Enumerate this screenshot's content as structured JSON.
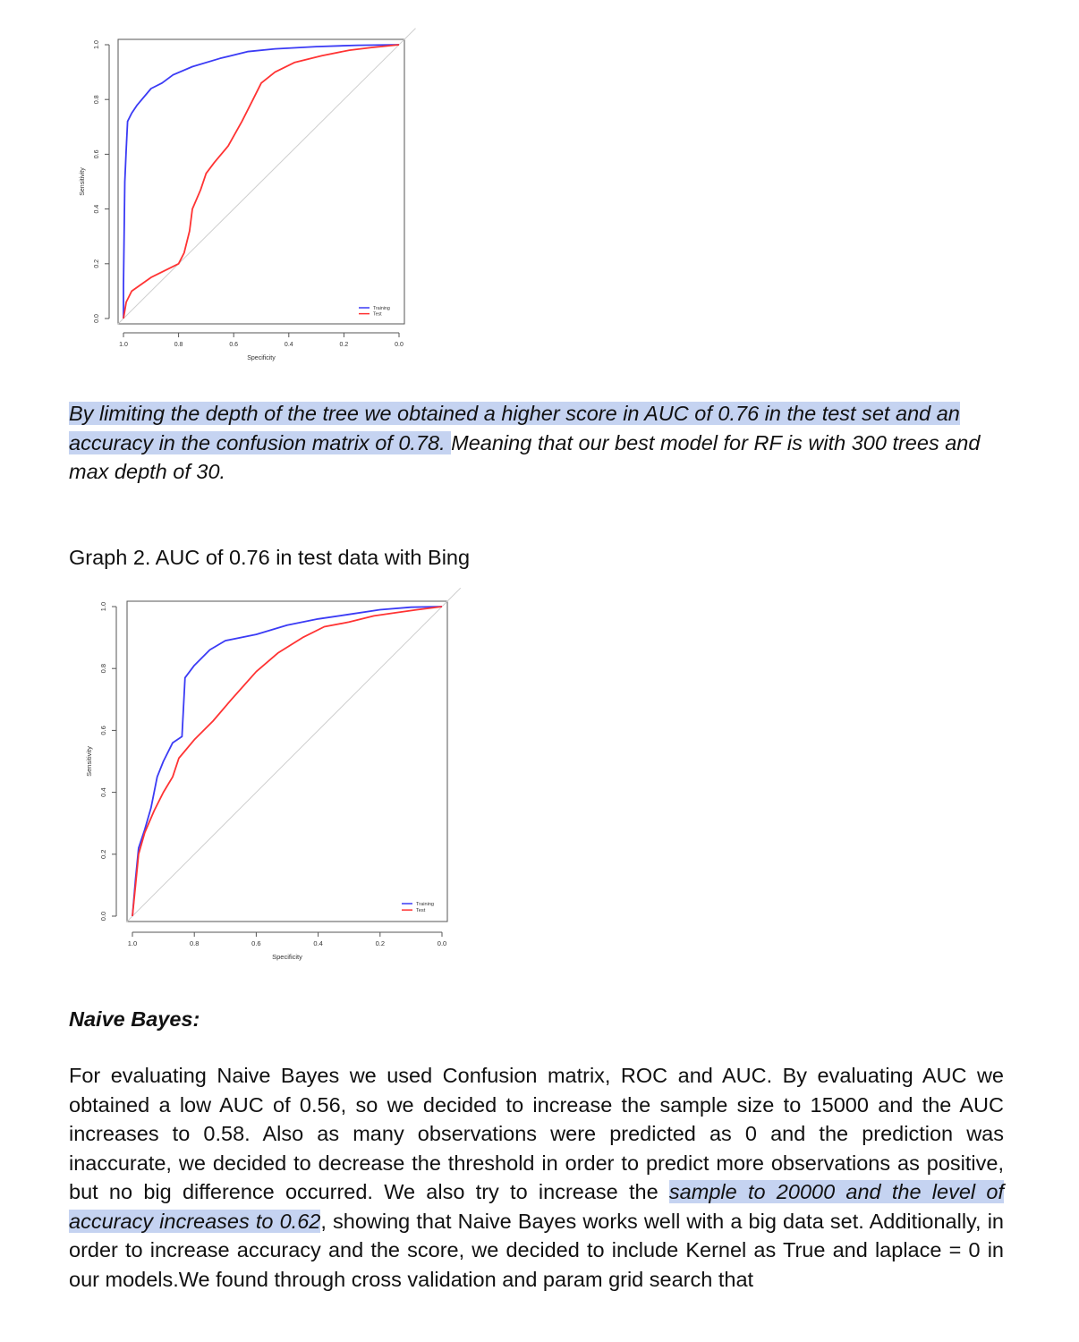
{
  "paragraph1": {
    "highlighted": "By limiting the depth of the tree we obtained a higher score in AUC of 0.76 in the test set and an accuracy in the confusion matrix of 0.78. ",
    "rest": "Meaning that our best model for RF is with 300 trees and max depth of 30."
  },
  "caption": "Graph 2. AUC of 0.76 in test data with Bing",
  "section_heading": "Naive Bayes:",
  "paragraph2": {
    "part1": "For evaluating  Naive Bayes we used Confusion matrix, ROC and AUC. By evaluating AUC we obtained a low AUC of 0.56, so we decided to increase the sample size to 15000 and the AUC increases to 0.58. Also as many observations were predicted as 0 and the prediction was inaccurate, we decided to decrease the threshold in order to predict more observations as positive, but no big difference occurred. We also try to increase the ",
    "highlight": "sample to 20000 and the level of accuracy increases to 0.62",
    "part2": ", showing that Naive Bayes works well with a big data set. Additionally, in order to increase accuracy and the score, we decided to include Kernel as True and laplace = 0 in our models.We found through cross validation and param grid search that"
  },
  "chart_data": [
    {
      "type": "line",
      "title": "",
      "xlabel": "Specificity",
      "ylabel": "Sensitivity",
      "xlim": [
        1.0,
        0.0
      ],
      "ylim": [
        0.0,
        1.0
      ],
      "x_ticks": [
        "1.0",
        "0.8",
        "0.6",
        "0.4",
        "0.2",
        "0.0"
      ],
      "y_ticks": [
        "0.0",
        "0.2",
        "0.4",
        "0.6",
        "0.8",
        "1.0"
      ],
      "legend_position": "bottom-right",
      "reference_line": true,
      "series": [
        {
          "name": "Training",
          "color": "#3b3bf5",
          "points": [
            [
              1.0,
              0.0
            ],
            [
              1.0,
              0.12
            ],
            [
              0.995,
              0.5
            ],
            [
              0.99,
              0.62
            ],
            [
              0.985,
              0.72
            ],
            [
              0.97,
              0.75
            ],
            [
              0.95,
              0.78
            ],
            [
              0.9,
              0.84
            ],
            [
              0.86,
              0.86
            ],
            [
              0.82,
              0.89
            ],
            [
              0.75,
              0.92
            ],
            [
              0.65,
              0.95
            ],
            [
              0.55,
              0.975
            ],
            [
              0.45,
              0.985
            ],
            [
              0.3,
              0.993
            ],
            [
              0.15,
              0.998
            ],
            [
              0.0,
              1.0
            ]
          ]
        },
        {
          "name": "Test",
          "color": "#ff3333",
          "points": [
            [
              1.0,
              0.0
            ],
            [
              0.99,
              0.06
            ],
            [
              0.97,
              0.1
            ],
            [
              0.9,
              0.15
            ],
            [
              0.8,
              0.2
            ],
            [
              0.78,
              0.24
            ],
            [
              0.76,
              0.32
            ],
            [
              0.75,
              0.4
            ],
            [
              0.72,
              0.47
            ],
            [
              0.7,
              0.53
            ],
            [
              0.67,
              0.57
            ],
            [
              0.62,
              0.63
            ],
            [
              0.57,
              0.72
            ],
            [
              0.53,
              0.8
            ],
            [
              0.5,
              0.86
            ],
            [
              0.45,
              0.9
            ],
            [
              0.38,
              0.935
            ],
            [
              0.28,
              0.96
            ],
            [
              0.18,
              0.98
            ],
            [
              0.1,
              0.99
            ],
            [
              0.0,
              1.0
            ]
          ]
        }
      ]
    },
    {
      "type": "line",
      "title": "",
      "xlabel": "Specificity",
      "ylabel": "Sensitivity",
      "xlim": [
        1.0,
        0.0
      ],
      "ylim": [
        0.0,
        1.0
      ],
      "x_ticks": [
        "1.0",
        "0.8",
        "0.6",
        "0.4",
        "0.2",
        "0.0"
      ],
      "y_ticks": [
        "0.0",
        "0.2",
        "0.4",
        "0.6",
        "0.8",
        "1.0"
      ],
      "legend_position": "bottom-right",
      "reference_line": true,
      "series": [
        {
          "name": "Training",
          "color": "#3b3bf5",
          "points": [
            [
              1.0,
              0.0
            ],
            [
              0.99,
              0.12
            ],
            [
              0.98,
              0.22
            ],
            [
              0.96,
              0.28
            ],
            [
              0.94,
              0.35
            ],
            [
              0.92,
              0.45
            ],
            [
              0.9,
              0.5
            ],
            [
              0.87,
              0.56
            ],
            [
              0.84,
              0.58
            ],
            [
              0.83,
              0.77
            ],
            [
              0.8,
              0.81
            ],
            [
              0.75,
              0.86
            ],
            [
              0.7,
              0.89
            ],
            [
              0.6,
              0.91
            ],
            [
              0.5,
              0.94
            ],
            [
              0.4,
              0.96
            ],
            [
              0.3,
              0.975
            ],
            [
              0.2,
              0.99
            ],
            [
              0.1,
              0.998
            ],
            [
              0.0,
              1.0
            ]
          ]
        },
        {
          "name": "Test",
          "color": "#ff3333",
          "points": [
            [
              1.0,
              0.0
            ],
            [
              0.99,
              0.1
            ],
            [
              0.98,
              0.2
            ],
            [
              0.96,
              0.27
            ],
            [
              0.93,
              0.34
            ],
            [
              0.9,
              0.4
            ],
            [
              0.87,
              0.45
            ],
            [
              0.85,
              0.51
            ],
            [
              0.8,
              0.57
            ],
            [
              0.74,
              0.63
            ],
            [
              0.68,
              0.7
            ],
            [
              0.6,
              0.79
            ],
            [
              0.53,
              0.85
            ],
            [
              0.45,
              0.9
            ],
            [
              0.38,
              0.935
            ],
            [
              0.3,
              0.95
            ],
            [
              0.22,
              0.97
            ],
            [
              0.15,
              0.98
            ],
            [
              0.08,
              0.99
            ],
            [
              0.0,
              1.0
            ]
          ]
        }
      ]
    }
  ]
}
